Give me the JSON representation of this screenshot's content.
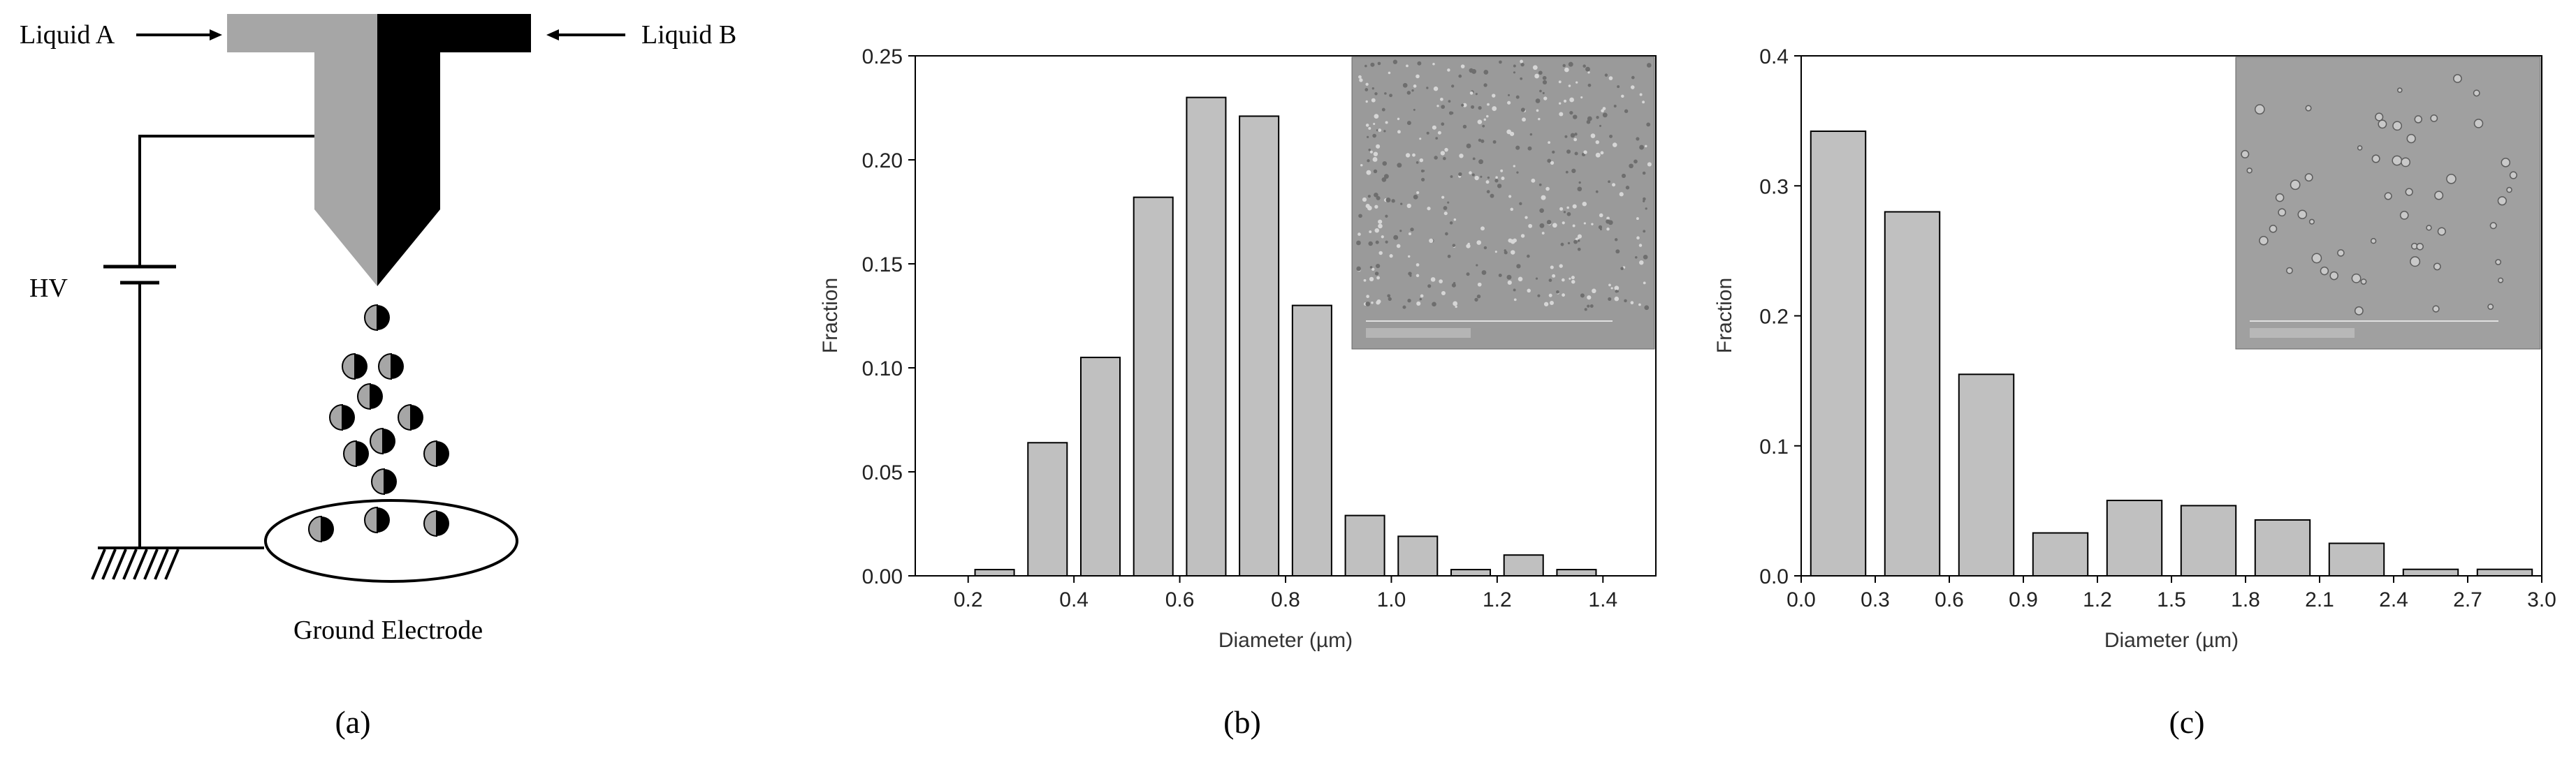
{
  "panel_a": {
    "liquid_a": "Liquid A",
    "liquid_b": "Liquid B",
    "hv": "HV",
    "ground": "Ground Electrode",
    "caption": "(a)"
  },
  "panel_b": {
    "caption": "(b)"
  },
  "panel_c": {
    "caption": "(c)"
  },
  "colors": {
    "bar": "#c0c0c0",
    "needle_a": "#a6a6a6",
    "needle_b": "#000000",
    "sem": "#9a9a9a"
  },
  "chart_data": [
    {
      "type": "bar",
      "title": "",
      "xlabel": "Diameter (µm)",
      "ylabel": "Fraction",
      "x": [
        0.25,
        0.35,
        0.45,
        0.55,
        0.65,
        0.75,
        0.85,
        0.95,
        1.05,
        1.15,
        1.25,
        1.35
      ],
      "values": [
        0.003,
        0.064,
        0.105,
        0.182,
        0.23,
        0.221,
        0.13,
        0.029,
        0.019,
        0.003,
        0.01,
        0.003
      ],
      "xlim": [
        0.1,
        1.5
      ],
      "ylim": [
        0,
        0.25
      ],
      "xticks": [
        "0.2",
        "0.4",
        "0.6",
        "0.8",
        "1.0",
        "1.2",
        "1.4"
      ],
      "yticks": [
        "0.00",
        "0.05",
        "0.10",
        "0.15",
        "0.20",
        "0.25"
      ],
      "inset": "SEM micrograph"
    },
    {
      "type": "bar",
      "title": "",
      "xlabel": "Diameter (µm)",
      "ylabel": "Fraction",
      "x": [
        0.15,
        0.45,
        0.75,
        1.05,
        1.35,
        1.65,
        1.95,
        2.25,
        2.55,
        2.85
      ],
      "values": [
        0.342,
        0.28,
        0.155,
        0.033,
        0.058,
        0.054,
        0.043,
        0.025,
        0.005,
        0.005
      ],
      "xlim": [
        0,
        3.0
      ],
      "ylim": [
        0,
        0.4
      ],
      "xticks": [
        "0.0",
        "0.3",
        "0.6",
        "0.9",
        "1.2",
        "1.5",
        "1.8",
        "2.1",
        "2.4",
        "2.7",
        "3.0"
      ],
      "yticks": [
        "0.0",
        "0.1",
        "0.2",
        "0.3",
        "0.4"
      ],
      "inset": "SEM micrograph"
    }
  ]
}
